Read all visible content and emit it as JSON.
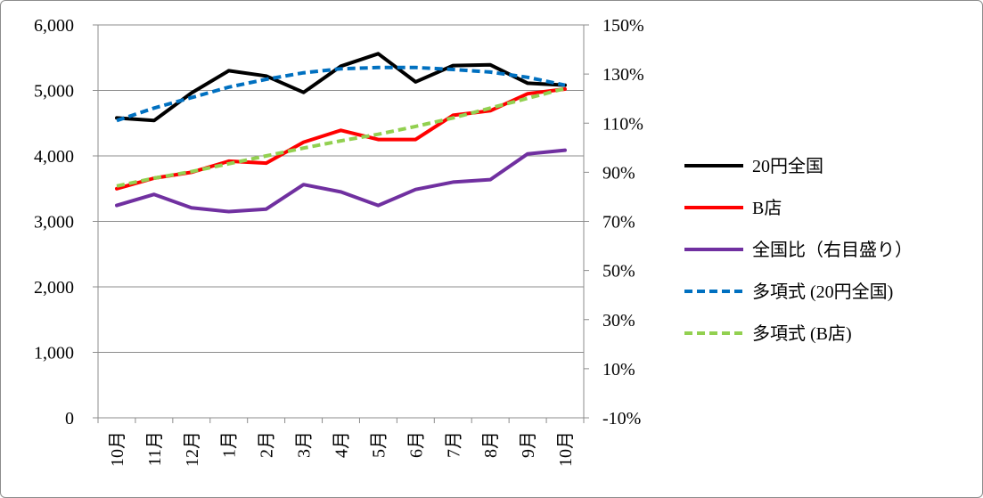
{
  "chart_data": {
    "type": "line",
    "title": "",
    "categories": [
      "10月",
      "11月",
      "12月",
      "1月",
      "2月",
      "3月",
      "4月",
      "5月",
      "6月",
      "7月",
      "8月",
      "9月",
      "10月"
    ],
    "y_left": {
      "ylim": [
        0,
        6000
      ],
      "ticks": [
        0,
        1000,
        2000,
        3000,
        4000,
        5000,
        6000
      ],
      "tick_labels": [
        "0",
        "1,000",
        "2,000",
        "3,000",
        "4,000",
        "5,000",
        "6,000"
      ]
    },
    "y_right": {
      "ylim": [
        -10,
        150
      ],
      "ticks": [
        -10,
        10,
        30,
        50,
        70,
        90,
        110,
        130,
        150
      ],
      "tick_labels": [
        "-10%",
        "10%",
        "30%",
        "50%",
        "70%",
        "90%",
        "110%",
        "130%",
        "150%"
      ]
    },
    "grid": true,
    "legend_position": "right",
    "series": [
      {
        "name": "20円全国",
        "axis": "left",
        "color": "#000000",
        "dash": false,
        "values": [
          4580,
          4540,
          4960,
          5300,
          5220,
          4970,
          5370,
          5560,
          5130,
          5380,
          5390,
          5110,
          5080
        ]
      },
      {
        "name": "B店",
        "axis": "left",
        "color": "#ff0000",
        "dash": false,
        "values": [
          3500,
          3660,
          3750,
          3920,
          3890,
          4210,
          4390,
          4250,
          4250,
          4620,
          4690,
          4950,
          5020
        ]
      },
      {
        "name": "全国比（右目盛り）",
        "axis": "right",
        "color": "#7030a0",
        "dash": false,
        "values": [
          76.5,
          81,
          75.5,
          74,
          75,
          85,
          82,
          76.5,
          83,
          86,
          87,
          97.5,
          99
        ]
      },
      {
        "name": "多項式 (20円全国)",
        "axis": "left",
        "color": "#0070c0",
        "dash": true,
        "values": [
          4540,
          4730,
          4890,
          5050,
          5170,
          5270,
          5330,
          5350,
          5350,
          5320,
          5280,
          5200,
          5080
        ]
      },
      {
        "name": "多項式 (B店)",
        "axis": "left",
        "color": "#92d050",
        "dash": true,
        "values": [
          3540,
          3660,
          3760,
          3880,
          4000,
          4120,
          4230,
          4330,
          4450,
          4580,
          4730,
          4880,
          5030
        ]
      }
    ]
  }
}
